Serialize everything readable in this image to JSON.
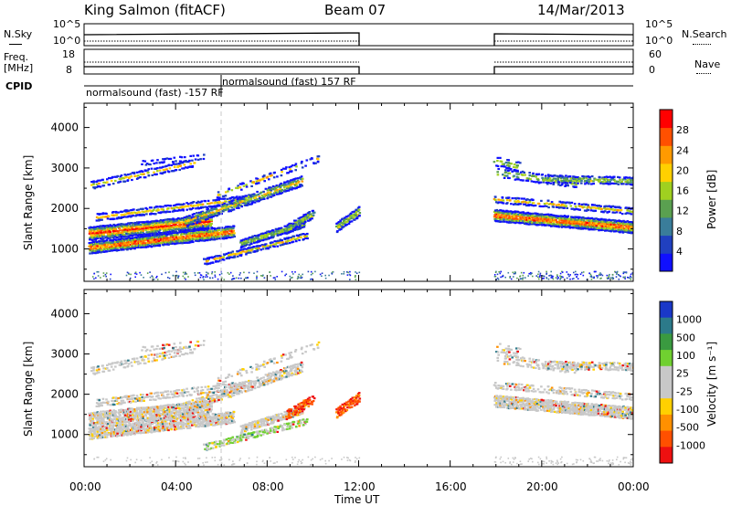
{
  "header": {
    "station": "King Salmon (fitACF)",
    "beam": "Beam 07",
    "date": "14/Mar/2013"
  },
  "sky_panel": {
    "left_label": "N.Sky",
    "right_label": "N.Search",
    "left_ticks": [
      "10^5",
      "10^0"
    ],
    "right_ticks": [
      "10^5",
      "10^0"
    ]
  },
  "freq_panel": {
    "left_label_1": "Freq.",
    "left_label_2": "[MHz]",
    "right_label": "Nave",
    "left_ticks": [
      "18",
      "8"
    ],
    "right_ticks": [
      "60",
      "0"
    ]
  },
  "cpid": {
    "label": "CPID",
    "entries": [
      "normalsound (fast) -157 RF",
      "normalsound (fast) 157 RF"
    ]
  },
  "chart_data": [
    {
      "type": "heatmap",
      "name": "power",
      "ylabel": "Slant Range [km]",
      "yticks": [
        1000,
        2000,
        3000,
        4000
      ],
      "ylim": [
        200,
        4600
      ],
      "colorbar_label": "Power [dB]",
      "colorbar_ticks": [
        "4",
        "8",
        "12",
        "16",
        "20",
        "24",
        "28"
      ],
      "colors": [
        "#1010ff",
        "#2040c0",
        "#3a7d9a",
        "#5aa050",
        "#a0d020",
        "#ffd000",
        "#ff9a00",
        "#ff5000",
        "#ff0000"
      ]
    },
    {
      "type": "heatmap",
      "name": "velocity",
      "ylabel": "Slant Range [km]",
      "yticks": [
        1000,
        2000,
        3000,
        4000
      ],
      "ylim": [
        200,
        4600
      ],
      "colorbar_label": "Velocity [m s⁻¹]",
      "colorbar_ticks": [
        "1000",
        "500",
        "100",
        "25",
        "-25",
        "-100",
        "-500",
        "-1000"
      ],
      "colors": [
        "#1a38c8",
        "#2c7a8a",
        "#3a9a40",
        "#70d030",
        "#c8c8c8",
        "#c8c8c8",
        "#ffd000",
        "#ff9000",
        "#ff5000",
        "#ee1010"
      ]
    }
  ],
  "xaxis": {
    "ticks": [
      "00:00",
      "04:00",
      "08:00",
      "12:00",
      "16:00",
      "20:00",
      "00:00"
    ],
    "label": "Time UT"
  }
}
